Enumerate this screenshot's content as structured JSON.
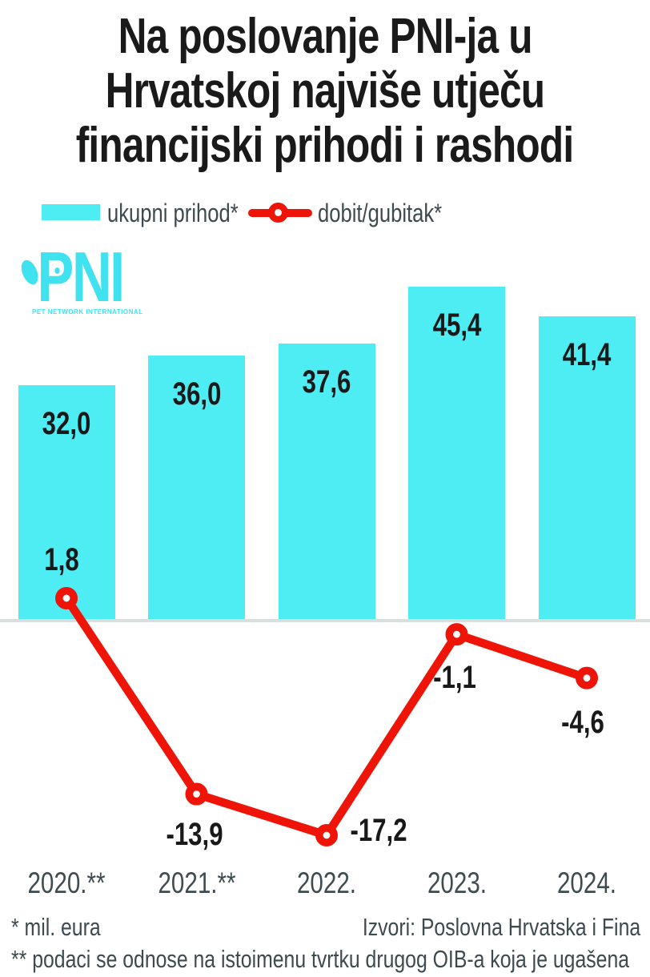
{
  "title": {
    "lines": [
      "Na poslovanje PNI-ja u",
      "Hrvatskoj najviše utječu",
      "financijski prihodi i rashodi"
    ]
  },
  "legend": {
    "bar_label": "ukupni prihod*",
    "line_label": "dobit/gubitak*"
  },
  "logo": {
    "wordmark": "PNI",
    "tagline": "PET NETWORK INTERNATIONAL"
  },
  "chart_data": {
    "type": "bar+line",
    "title": "Na poslovanje PNI-ja u Hrvatskoj najviše utječu financijski prihodi i rashodi",
    "unit": "mil. eura",
    "categories": [
      "2020.**",
      "2021.**",
      "2022.",
      "2023.",
      "2024."
    ],
    "series": [
      {
        "name": "ukupni prihod*",
        "type": "bar",
        "values": [
          32.0,
          36.0,
          37.6,
          45.4,
          41.4
        ],
        "labels": [
          "32,0",
          "36,0",
          "37,6",
          "45,4",
          "41,4"
        ]
      },
      {
        "name": "dobit/gubitak*",
        "type": "line",
        "values": [
          1.8,
          -13.9,
          -17.2,
          -1.1,
          -4.6
        ],
        "labels": [
          "1,8",
          "-13,9",
          "-17,2",
          "-1,1",
          "-4,6"
        ]
      }
    ],
    "bar_axis_range": [
      0,
      50
    ],
    "line_axis_range": [
      -20,
      5
    ],
    "grid": false,
    "legend_position": "top-left",
    "baseline_value": 0
  },
  "footnotes": {
    "unit_note": "* mil. eura",
    "source": "Izvori: Poslovna Hrvatska i Fina",
    "oib_note": "** podaci se odnose na istoimenu tvrtku drugog OIB-a koja je ugašena"
  },
  "colors": {
    "bar": "#4dedf3",
    "line": "#ee1408",
    "logo": "#3fe2ee",
    "title_text": "#1a1a1a",
    "value_text": "#191919",
    "label_text": "#3e4c50",
    "baseline": "#dadedd",
    "background": "#ffffff"
  }
}
